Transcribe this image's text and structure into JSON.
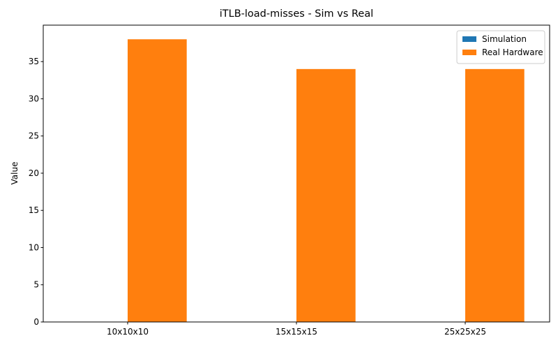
{
  "chart_data": {
    "type": "bar",
    "title": "iTLB-load-misses - Sim vs Real",
    "xlabel": "",
    "ylabel": "Value",
    "categories": [
      "10x10x10",
      "15x15x15",
      "25x25x25"
    ],
    "series": [
      {
        "name": "Simulation",
        "values": [
          0,
          0,
          0
        ],
        "color": "#1f77b4"
      },
      {
        "name": "Real Hardware",
        "values": [
          38,
          34,
          34
        ],
        "color": "#ff7f0e"
      }
    ],
    "ylim": [
      0,
      39.9
    ],
    "yticks": [
      0,
      5,
      10,
      15,
      20,
      25,
      30,
      35
    ],
    "grid": false,
    "legend_position": "upper right"
  }
}
